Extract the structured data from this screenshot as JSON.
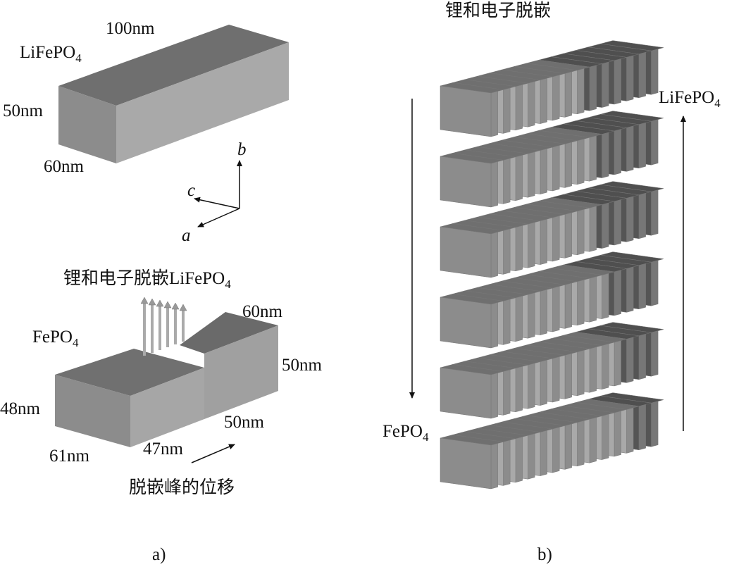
{
  "panel_a": {
    "caption": "a)",
    "top_box": {
      "material": "LiFePO",
      "material_sub": "4",
      "length": "100nm",
      "height": "50nm",
      "width": "60nm"
    },
    "axes": {
      "b": "b",
      "c": "c",
      "a": "a"
    },
    "bottom_box": {
      "title": "锂和电子脱嵌LiFePO",
      "title_sub": "4",
      "material": "FePO",
      "material_sub": "4",
      "right_width": "60nm",
      "right_height": "50nm",
      "right_length": "50nm",
      "left_height": "48nm",
      "left_width": "61nm",
      "left_length": "47nm",
      "arrow_label": "脱嵌峰的位移"
    }
  },
  "panel_b": {
    "caption": "b)",
    "title": "锂和电子脱嵌",
    "top_right_label": "LiFePO",
    "top_right_sub": "4",
    "bottom_left_label": "FePO",
    "bottom_left_sub": "4"
  },
  "colors": {
    "top_face": "#6f6f6f",
    "side_face": "#8c8c8c",
    "long_face": "#a9a9a9",
    "delithiated": "#555555"
  }
}
